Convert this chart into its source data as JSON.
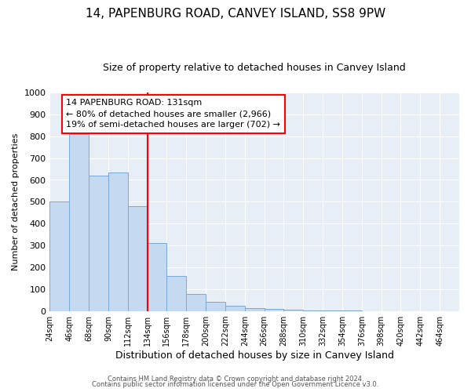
{
  "title": "14, PAPENBURG ROAD, CANVEY ISLAND, SS8 9PW",
  "subtitle": "Size of property relative to detached houses in Canvey Island",
  "xlabel": "Distribution of detached houses by size in Canvey Island",
  "ylabel": "Number of detached properties",
  "bar_left_edges": [
    24,
    46,
    68,
    90,
    112,
    134,
    156,
    178,
    200,
    222,
    244,
    266,
    288,
    310,
    332,
    354,
    376,
    398,
    420,
    442
  ],
  "bar_heights": [
    500,
    810,
    620,
    635,
    480,
    310,
    160,
    78,
    45,
    25,
    15,
    10,
    8,
    5,
    4,
    3,
    2,
    2,
    1,
    1
  ],
  "bin_width": 22,
  "bar_color": "#c5d9f0",
  "bar_edge_color": "#7aa8d4",
  "red_line_x": 134,
  "ylim": [
    0,
    1000
  ],
  "xlim_min": 24,
  "xlim_max": 486,
  "annotation_title": "14 PAPENBURG ROAD: 131sqm",
  "annotation_line1": "← 80% of detached houses are smaller (2,966)",
  "annotation_line2": "19% of semi-detached houses are larger (702) →",
  "footer1": "Contains HM Land Registry data © Crown copyright and database right 2024.",
  "footer2": "Contains public sector information licensed under the Open Government Licence v3.0.",
  "plot_bg_color": "#e8eef5",
  "fig_bg_color": "#ffffff",
  "tick_labels": [
    "24sqm",
    "46sqm",
    "68sqm",
    "90sqm",
    "112sqm",
    "134sqm",
    "156sqm",
    "178sqm",
    "200sqm",
    "222sqm",
    "244sqm",
    "266sqm",
    "288sqm",
    "310sqm",
    "332sqm",
    "354sqm",
    "376sqm",
    "398sqm",
    "420sqm",
    "442sqm",
    "464sqm"
  ],
  "title_fontsize": 11,
  "subtitle_fontsize": 9,
  "yticks": [
    0,
    100,
    200,
    300,
    400,
    500,
    600,
    700,
    800,
    900,
    1000
  ]
}
